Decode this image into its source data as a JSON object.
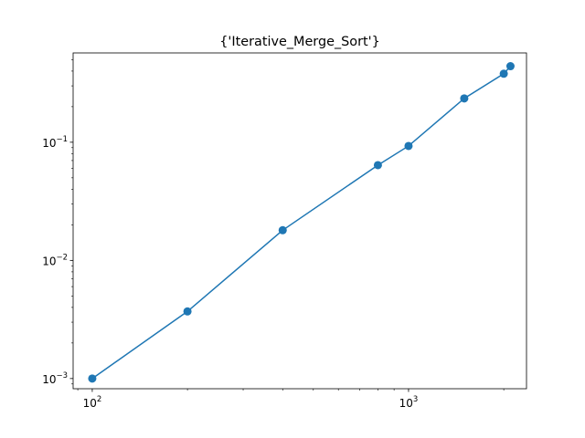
{
  "chart_data": {
    "type": "line",
    "title": "{'Iterative_Merge_Sort'}",
    "xlabel": "",
    "ylabel": "",
    "x_scale": "log",
    "y_scale": "log",
    "xlim": [
      87,
      2360
    ],
    "ylim": [
      0.00082,
      0.57
    ],
    "grid": false,
    "legend": "none",
    "x_ticks": [
      {
        "value": 100,
        "label": "10",
        "exp": "2"
      },
      {
        "value": 1000,
        "label": "10",
        "exp": "3"
      }
    ],
    "y_ticks": [
      {
        "value": 0.001,
        "label": "10",
        "exp": "−3"
      },
      {
        "value": 0.01,
        "label": "10",
        "exp": "−2"
      },
      {
        "value": 0.1,
        "label": "10",
        "exp": "−1"
      }
    ],
    "series": [
      {
        "color": "#1f77b4",
        "marker": "circle",
        "x": [
          100,
          200,
          400,
          800,
          1000,
          1500,
          2000,
          2100
        ],
        "y": [
          0.001,
          0.0037,
          0.018,
          0.064,
          0.093,
          0.235,
          0.38,
          0.44
        ]
      }
    ]
  }
}
